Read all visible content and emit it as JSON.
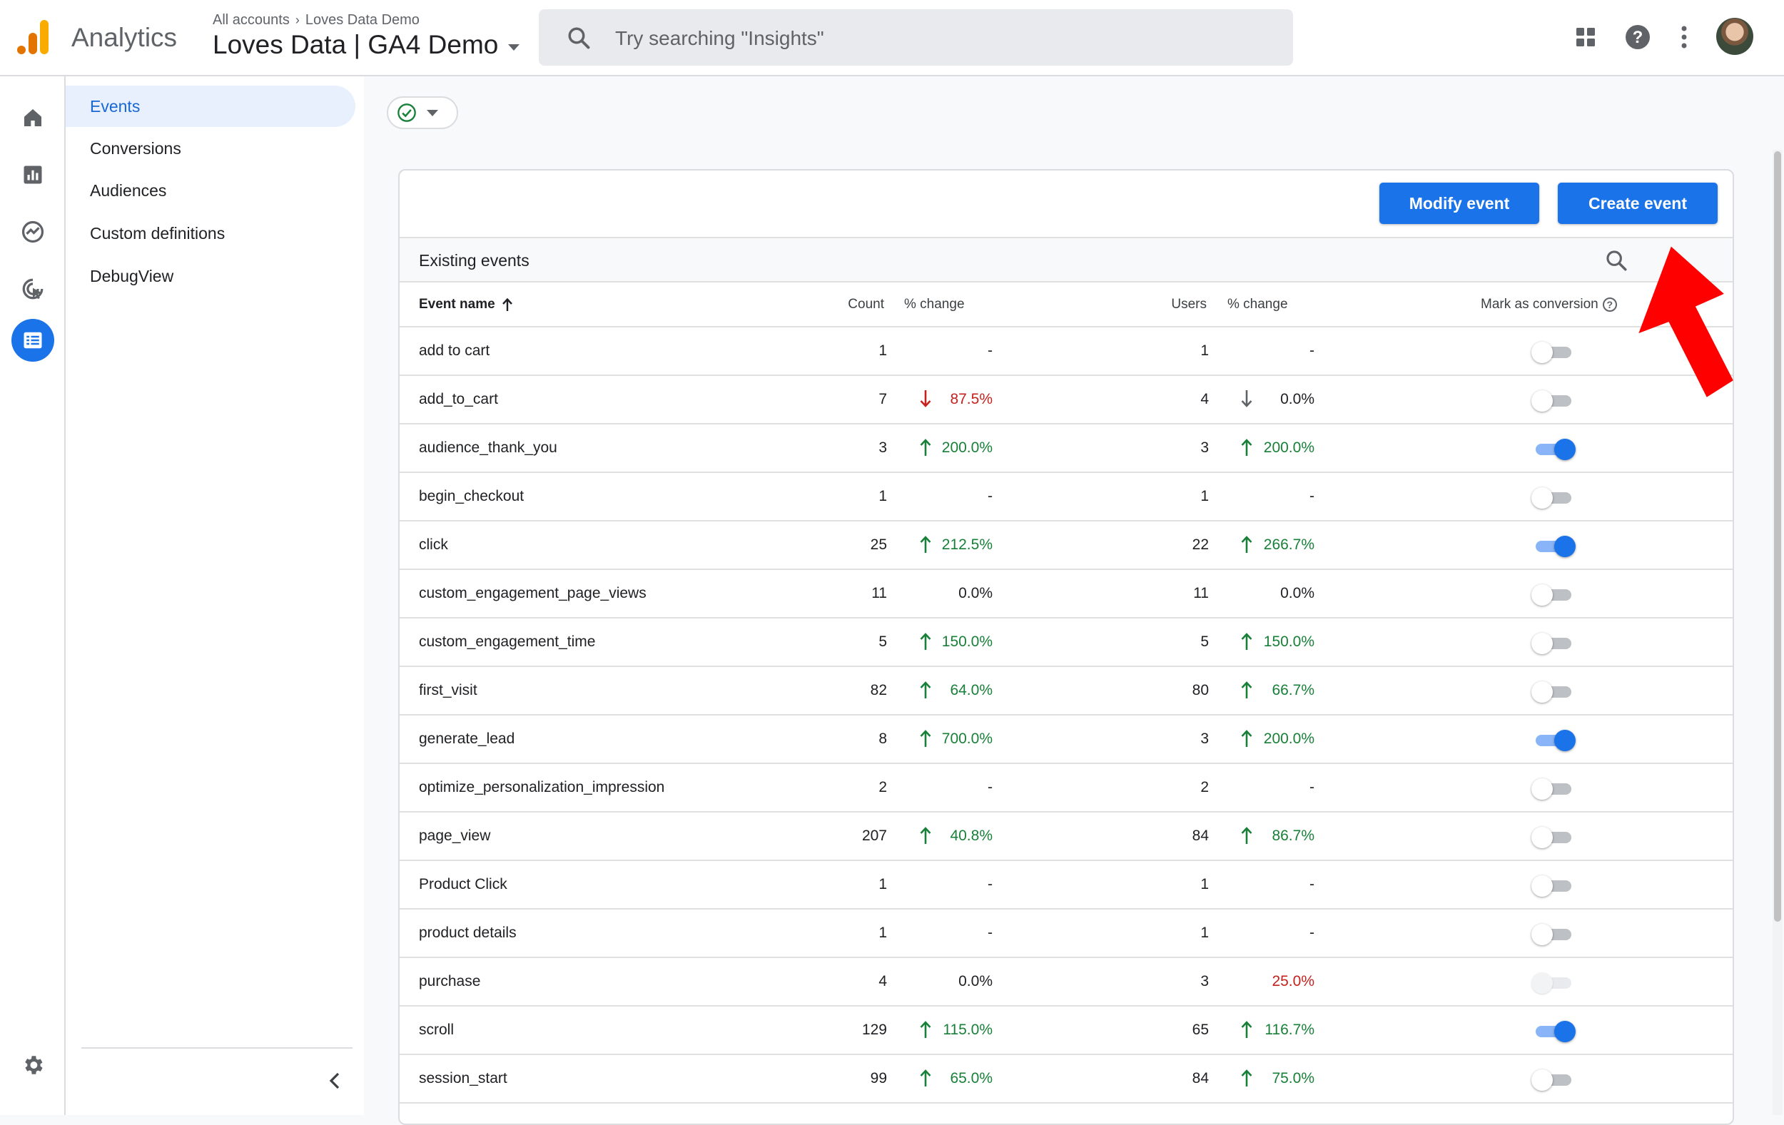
{
  "app": {
    "name": "Analytics"
  },
  "header": {
    "breadcrumb_root": "All accounts",
    "breadcrumb_account": "Loves Data Demo",
    "property": "Loves Data | GA4 Demo",
    "search_placeholder": "Try searching \"Insights\""
  },
  "topbar_icons": [
    "apps-icon",
    "help-icon",
    "more-vert-icon",
    "account-avatar"
  ],
  "rail_icons": [
    "home-icon",
    "reports-icon",
    "explore-icon",
    "advertising-icon",
    "configure-icon",
    "admin-gear-icon"
  ],
  "subnav": {
    "items": [
      {
        "label": "Events",
        "active": true
      },
      {
        "label": "Conversions",
        "active": false
      },
      {
        "label": "Audiences",
        "active": false
      },
      {
        "label": "Custom definitions",
        "active": false
      },
      {
        "label": "DebugView",
        "active": false
      }
    ]
  },
  "actions": {
    "modify": "Modify event",
    "create": "Create event"
  },
  "table": {
    "section_title": "Existing events",
    "columns": {
      "name": "Event name",
      "count": "Count",
      "count_change": "% change",
      "users": "Users",
      "users_change": "% change",
      "mark": "Mark as conversion"
    },
    "rows": [
      {
        "name": "add to cart",
        "count": "1",
        "count_change": "-",
        "count_trend": "none",
        "users": "1",
        "users_change": "-",
        "users_trend": "none",
        "conversion": "off"
      },
      {
        "name": "add_to_cart",
        "count": "7",
        "count_change": "87.5%",
        "count_trend": "down",
        "users": "4",
        "users_change": "0.0%",
        "users_trend": "down-neutral",
        "conversion": "off"
      },
      {
        "name": "audience_thank_you",
        "count": "3",
        "count_change": "200.0%",
        "count_trend": "up",
        "users": "3",
        "users_change": "200.0%",
        "users_trend": "up",
        "conversion": "on"
      },
      {
        "name": "begin_checkout",
        "count": "1",
        "count_change": "-",
        "count_trend": "none",
        "users": "1",
        "users_change": "-",
        "users_trend": "none",
        "conversion": "off"
      },
      {
        "name": "click",
        "count": "25",
        "count_change": "212.5%",
        "count_trend": "up",
        "users": "22",
        "users_change": "266.7%",
        "users_trend": "up",
        "conversion": "on"
      },
      {
        "name": "custom_engagement_page_views",
        "count": "11",
        "count_change": "0.0%",
        "count_trend": "none",
        "users": "11",
        "users_change": "0.0%",
        "users_trend": "none",
        "conversion": "off"
      },
      {
        "name": "custom_engagement_time",
        "count": "5",
        "count_change": "150.0%",
        "count_trend": "up",
        "users": "5",
        "users_change": "150.0%",
        "users_trend": "up",
        "conversion": "off"
      },
      {
        "name": "first_visit",
        "count": "82",
        "count_change": "64.0%",
        "count_trend": "up",
        "users": "80",
        "users_change": "66.7%",
        "users_trend": "up",
        "conversion": "off"
      },
      {
        "name": "generate_lead",
        "count": "8",
        "count_change": "700.0%",
        "count_trend": "up",
        "users": "3",
        "users_change": "200.0%",
        "users_trend": "up",
        "conversion": "on"
      },
      {
        "name": "optimize_personalization_impression",
        "count": "2",
        "count_change": "-",
        "count_trend": "none",
        "users": "2",
        "users_change": "-",
        "users_trend": "none",
        "conversion": "off"
      },
      {
        "name": "page_view",
        "count": "207",
        "count_change": "40.8%",
        "count_trend": "up",
        "users": "84",
        "users_change": "86.7%",
        "users_trend": "up",
        "conversion": "off"
      },
      {
        "name": "Product Click",
        "count": "1",
        "count_change": "-",
        "count_trend": "none",
        "users": "1",
        "users_change": "-",
        "users_trend": "none",
        "conversion": "off"
      },
      {
        "name": "product details",
        "count": "1",
        "count_change": "-",
        "count_trend": "none",
        "users": "1",
        "users_change": "-",
        "users_trend": "none",
        "conversion": "off"
      },
      {
        "name": "purchase",
        "count": "4",
        "count_change": "0.0%",
        "count_trend": "none",
        "users": "3",
        "users_change": "25.0%",
        "users_trend": "down-text",
        "conversion": "disabled"
      },
      {
        "name": "scroll",
        "count": "129",
        "count_change": "115.0%",
        "count_trend": "up",
        "users": "65",
        "users_change": "116.7%",
        "users_trend": "up",
        "conversion": "on"
      },
      {
        "name": "session_start",
        "count": "99",
        "count_change": "65.0%",
        "count_trend": "up",
        "users": "84",
        "users_change": "75.0%",
        "users_trend": "up",
        "conversion": "off"
      }
    ]
  },
  "colors": {
    "brand_blue": "#1a73e8",
    "up_green": "#188038",
    "down_red": "#c5221f",
    "annotation_red": "#ff0000"
  }
}
